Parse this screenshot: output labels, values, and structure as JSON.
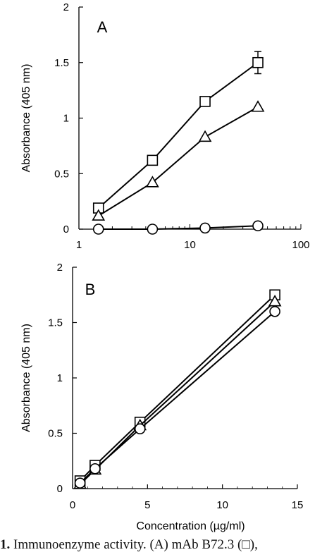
{
  "chart_data": [
    {
      "type": "line",
      "panel_label": "A",
      "xlabel": "",
      "ylabel": "Absorbance (405 nm)",
      "xscale": "log",
      "xlim": [
        1,
        100
      ],
      "ylim": [
        0,
        2
      ],
      "xticks": [
        "1",
        "10",
        "100"
      ],
      "yticks": [
        "0",
        "0.5",
        "1",
        "1.5",
        "2"
      ],
      "grid": false,
      "series": [
        {
          "marker": "square",
          "x": [
            1.5,
            4.6,
            13.7,
            41
          ],
          "y": [
            0.19,
            0.62,
            1.15,
            1.5
          ],
          "yerr": [
            0,
            0,
            0,
            0.1
          ]
        },
        {
          "marker": "triangle",
          "x": [
            1.5,
            4.6,
            13.7,
            41
          ],
          "y": [
            0.12,
            0.42,
            0.83,
            1.1
          ]
        },
        {
          "marker": "circle",
          "x": [
            1.5,
            4.6,
            13.7,
            41
          ],
          "y": [
            0.0,
            0.0,
            0.01,
            0.03
          ]
        }
      ]
    },
    {
      "type": "line",
      "panel_label": "B",
      "xlabel": "Concentration (µg/ml)",
      "ylabel": "Absorbance (405 nm)",
      "xscale": "linear",
      "xlim": [
        0,
        15
      ],
      "ylim": [
        0,
        2
      ],
      "xticks": [
        "0",
        "5",
        "10",
        "15"
      ],
      "yticks": [
        "0",
        "0.5",
        "1",
        "1.5",
        "2"
      ],
      "grid": false,
      "series": [
        {
          "marker": "square",
          "x": [
            0.5,
            1.5,
            4.5,
            13.5
          ],
          "y": [
            0.07,
            0.21,
            0.6,
            1.75
          ]
        },
        {
          "marker": "triangle",
          "x": [
            0.5,
            1.5,
            4.5,
            13.5
          ],
          "y": [
            0.04,
            0.17,
            0.57,
            1.69
          ]
        },
        {
          "marker": "circle",
          "x": [
            0.5,
            1.5,
            4.5,
            13.5
          ],
          "y": [
            0.05,
            0.18,
            0.54,
            1.6
          ]
        }
      ]
    }
  ],
  "caption": {
    "number": "1.",
    "text": "Immunoenzyme activity. (A) mAb B72.3 (□),"
  }
}
